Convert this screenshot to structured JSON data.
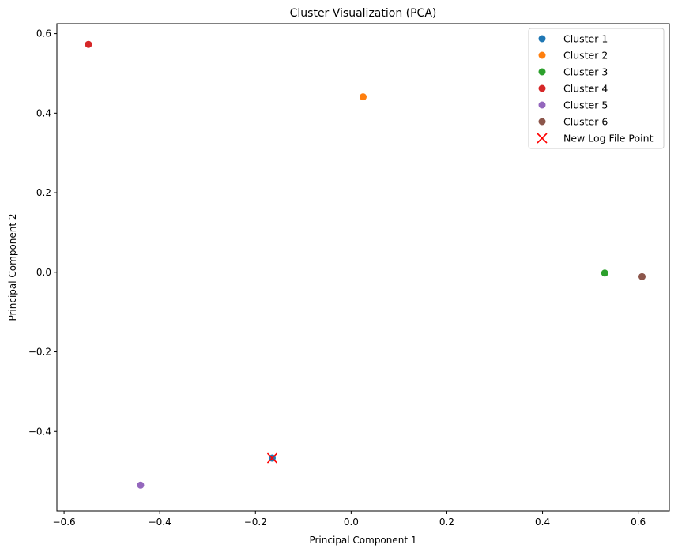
{
  "chart_data": {
    "type": "scatter",
    "title": "Cluster Visualization (PCA)",
    "xlabel": "Principal Component 1",
    "ylabel": "Principal Component 2",
    "xlim": [
      -0.615,
      0.665
    ],
    "ylim": [
      -0.6,
      0.625
    ],
    "xticks": [
      -0.6,
      -0.4,
      -0.2,
      0.0,
      0.2,
      0.4,
      0.6
    ],
    "xtick_labels": [
      "−0.6",
      "−0.4",
      "−0.2",
      "0.0",
      "0.2",
      "0.4",
      "0.6"
    ],
    "yticks": [
      -0.4,
      -0.2,
      0.0,
      0.2,
      0.4,
      0.6
    ],
    "ytick_labels": [
      "−0.4",
      "−0.2",
      "0.0",
      "0.2",
      "0.4",
      "0.6"
    ],
    "grid": false,
    "legend_position": "top-right",
    "series": [
      {
        "name": "Cluster 1",
        "color": "#1f77b4",
        "marker": "circle",
        "points": [
          {
            "x": -0.165,
            "y": -0.467
          }
        ]
      },
      {
        "name": "Cluster 2",
        "color": "#ff7f0e",
        "marker": "circle",
        "points": [
          {
            "x": 0.025,
            "y": 0.441
          }
        ]
      },
      {
        "name": "Cluster 3",
        "color": "#2ca02c",
        "marker": "circle",
        "points": [
          {
            "x": 0.53,
            "y": -0.002
          }
        ]
      },
      {
        "name": "Cluster 4",
        "color": "#d62728",
        "marker": "circle",
        "points": [
          {
            "x": -0.549,
            "y": 0.573
          }
        ]
      },
      {
        "name": "Cluster 5",
        "color": "#9467bd",
        "marker": "circle",
        "points": [
          {
            "x": -0.44,
            "y": -0.535
          }
        ]
      },
      {
        "name": "Cluster 6",
        "color": "#8c564b",
        "marker": "circle",
        "points": [
          {
            "x": 0.608,
            "y": -0.011
          }
        ]
      },
      {
        "name": "New Log File Point",
        "color": "#ff0000",
        "marker": "x",
        "points": [
          {
            "x": -0.165,
            "y": -0.467
          }
        ]
      }
    ]
  }
}
